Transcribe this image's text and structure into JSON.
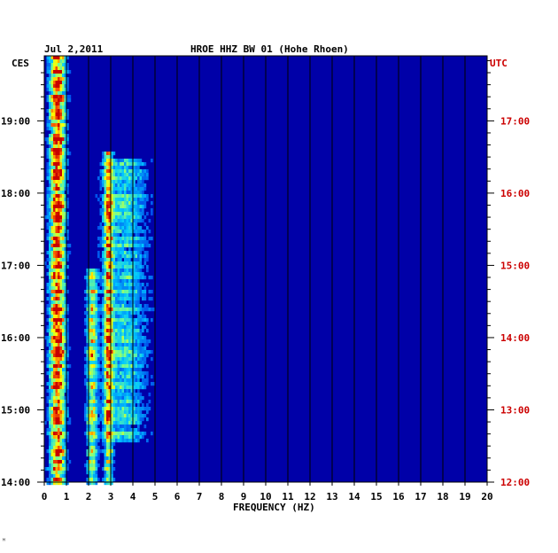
{
  "header": {
    "date": "Jul 2,2011",
    "station": "HROE HHZ BW 01 (Hohe Rhoen)"
  },
  "axis_labels": {
    "left_tz": "CES",
    "right_tz": "UTC",
    "xlabel": "FREQUENCY (HZ)"
  },
  "colors": {
    "background": "#0000a8",
    "utc_text": "#cc0000",
    "grid": "#000000"
  },
  "footer_mark": "ᴹ",
  "chart_data": {
    "type": "heatmap",
    "title": "HROE HHZ BW 01 (Hohe Rhoen)",
    "xlabel": "FREQUENCY (HZ)",
    "xlim": [
      0,
      20
    ],
    "x_ticks": [
      0,
      1,
      2,
      3,
      4,
      5,
      6,
      7,
      8,
      9,
      10,
      11,
      12,
      13,
      14,
      15,
      16,
      17,
      18,
      19,
      20
    ],
    "time_range_hours": [
      14.0,
      19.9
    ],
    "left_time_ticks": [
      {
        "hour": 19,
        "label": "19:00"
      },
      {
        "hour": 18,
        "label": "18:00"
      },
      {
        "hour": 17,
        "label": "17:00"
      },
      {
        "hour": 16,
        "label": "16:00"
      },
      {
        "hour": 15,
        "label": "15:00"
      },
      {
        "hour": 14,
        "label": "14:00"
      }
    ],
    "right_time_ticks": [
      {
        "hour": 19,
        "label": "17:00"
      },
      {
        "hour": 18,
        "label": "16:00"
      },
      {
        "hour": 17,
        "label": "15:00"
      },
      {
        "hour": 16,
        "label": "14:00"
      },
      {
        "hour": 15,
        "label": "13:00"
      },
      {
        "hour": 14,
        "label": "12:00"
      }
    ],
    "bands": [
      {
        "freq": 0.55,
        "width": 0.35,
        "intensity": 0.9,
        "t0": 14.0,
        "t1": 19.9
      },
      {
        "freq": 2.1,
        "width": 0.25,
        "intensity": 0.55,
        "t0": 14.0,
        "t1": 17.0
      },
      {
        "freq": 2.85,
        "width": 0.2,
        "intensity": 0.6,
        "t0": 14.0,
        "t1": 18.6
      },
      {
        "freq": 3.6,
        "width": 1.0,
        "intensity": 0.35,
        "t0": 14.6,
        "t1": 18.5
      }
    ]
  }
}
